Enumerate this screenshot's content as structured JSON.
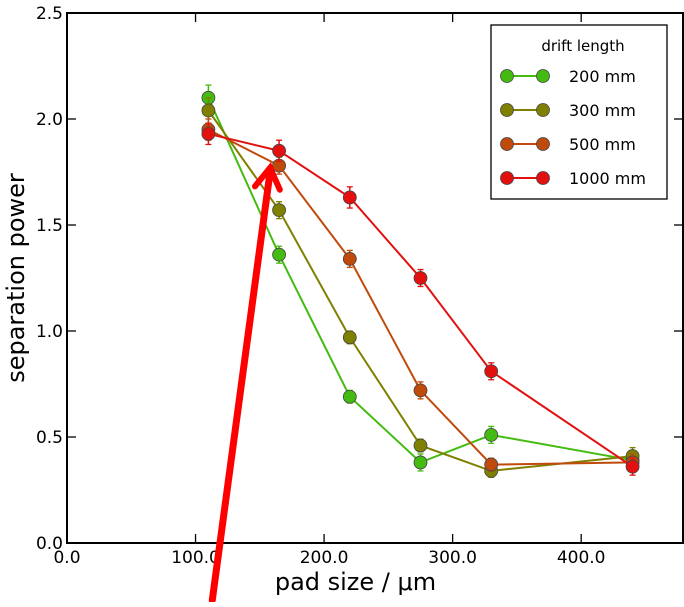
{
  "chart_data": {
    "type": "line",
    "xlabel": "pad size / μm",
    "ylabel": "separation power",
    "xlim": [
      0,
      480
    ],
    "ylim": [
      0,
      2.5
    ],
    "xticks": [
      "0.0",
      "100.0",
      "200.0",
      "300.0",
      "400.0"
    ],
    "yticks": [
      "0.0",
      "0.5",
      "1.0",
      "1.5",
      "2.0",
      "2.5"
    ],
    "grid": false,
    "legend": {
      "title": "drift length",
      "placement": "top-right"
    },
    "x": [
      110,
      165,
      220,
      275,
      330,
      440
    ],
    "series": [
      {
        "name": "200 mm",
        "color": "#44bb11",
        "values": [
          2.1,
          1.36,
          0.69,
          0.38,
          0.51,
          0.39
        ],
        "errors": [
          0.06,
          0.04,
          0.03,
          0.04,
          0.04,
          0.03
        ]
      },
      {
        "name": "300 mm",
        "color": "#808000",
        "values": [
          2.04,
          1.57,
          0.97,
          0.46,
          0.34,
          0.41
        ],
        "errors": [
          0.06,
          0.04,
          0.03,
          0.03,
          0.03,
          0.04
        ]
      },
      {
        "name": "500 mm",
        "color": "#c04a0c",
        "values": [
          1.95,
          1.78,
          1.34,
          0.72,
          0.37,
          0.38
        ],
        "errors": [
          0.05,
          0.04,
          0.04,
          0.04,
          0.03,
          0.04
        ]
      },
      {
        "name": "1000 mm",
        "color": "#e31010",
        "values": [
          1.93,
          1.85,
          1.63,
          1.25,
          0.81,
          0.36
        ],
        "errors": [
          0.05,
          0.05,
          0.05,
          0.04,
          0.04,
          0.04
        ]
      }
    ],
    "annotations": [
      {
        "type": "arrow",
        "color": "#ff0000",
        "from": [
          113,
          -0.27
        ],
        "to": [
          158,
          1.77
        ]
      }
    ]
  }
}
